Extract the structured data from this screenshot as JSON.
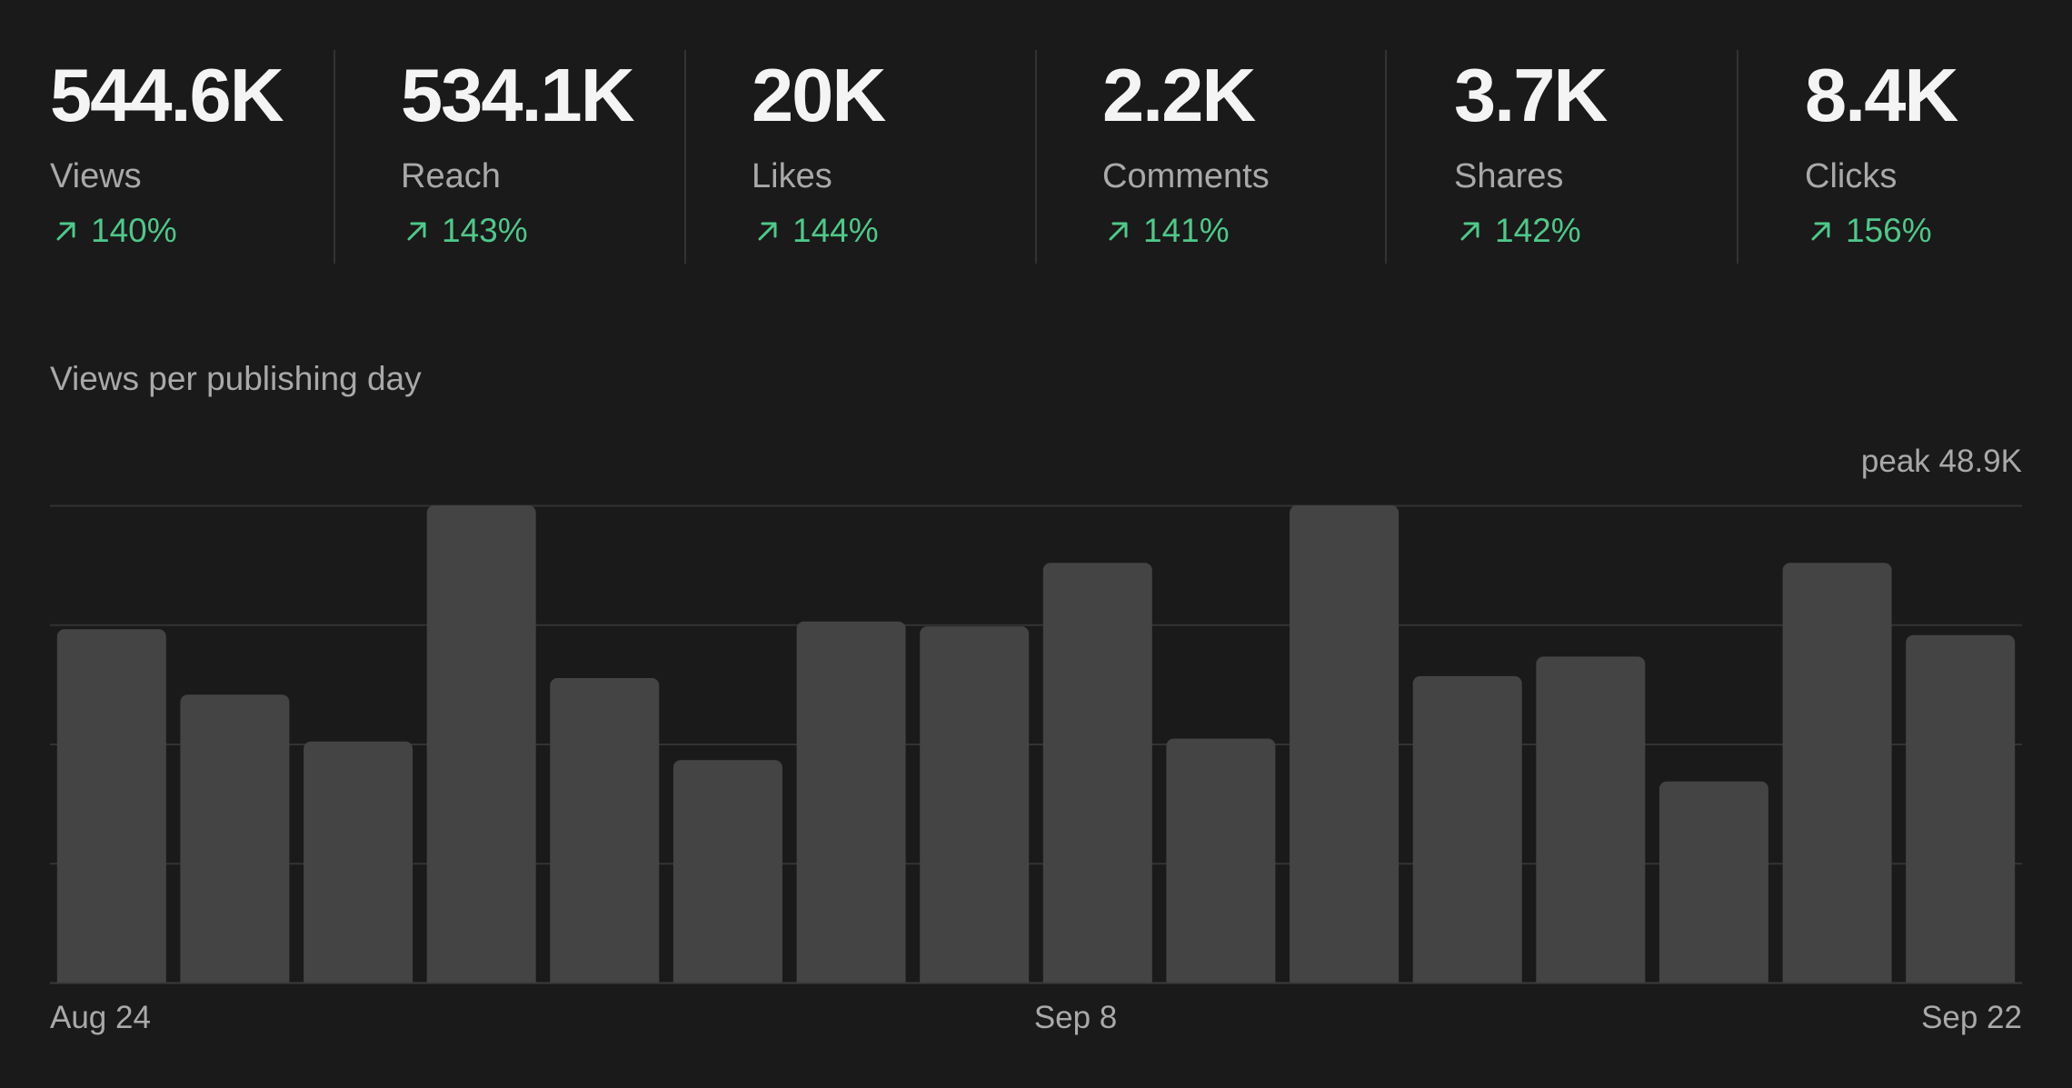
{
  "stats": [
    {
      "value": "544.6K",
      "label": "Views",
      "change": "140%"
    },
    {
      "value": "534.1K",
      "label": "Reach",
      "change": "143%"
    },
    {
      "value": "20K",
      "label": "Likes",
      "change": "144%"
    },
    {
      "value": "2.2K",
      "label": "Comments",
      "change": "141%"
    },
    {
      "value": "3.7K",
      "label": "Shares",
      "change": "142%"
    },
    {
      "value": "8.4K",
      "label": "Clicks",
      "change": "156%"
    }
  ],
  "change_icon": "arrow-up-right-icon",
  "colors": {
    "background": "#1a1a1a",
    "positive": "#4fc88a",
    "bar": "#444444",
    "grid": "#333333"
  },
  "chart_title": "Views per publishing day",
  "peak_label": "peak 48.9K",
  "chart_data": {
    "type": "bar",
    "title": "Views per publishing day",
    "xlabel": "",
    "ylabel": "",
    "categories": [
      "Aug 24",
      "",
      "",
      "",
      "",
      "",
      "",
      "",
      "Sep 8",
      "",
      "",
      "",
      "",
      "",
      "",
      "Sep 22"
    ],
    "values": [
      36.2,
      29.5,
      24.7,
      48.9,
      31.2,
      22.8,
      37.0,
      36.5,
      43.0,
      25.0,
      48.9,
      31.4,
      33.4,
      20.6,
      43.0,
      35.6
    ],
    "units": "thousand views",
    "ylim": [
      0,
      48.9
    ],
    "grid": true,
    "x_tick_labels": [
      "Aug 24",
      "Sep 8",
      "Sep 22"
    ]
  }
}
